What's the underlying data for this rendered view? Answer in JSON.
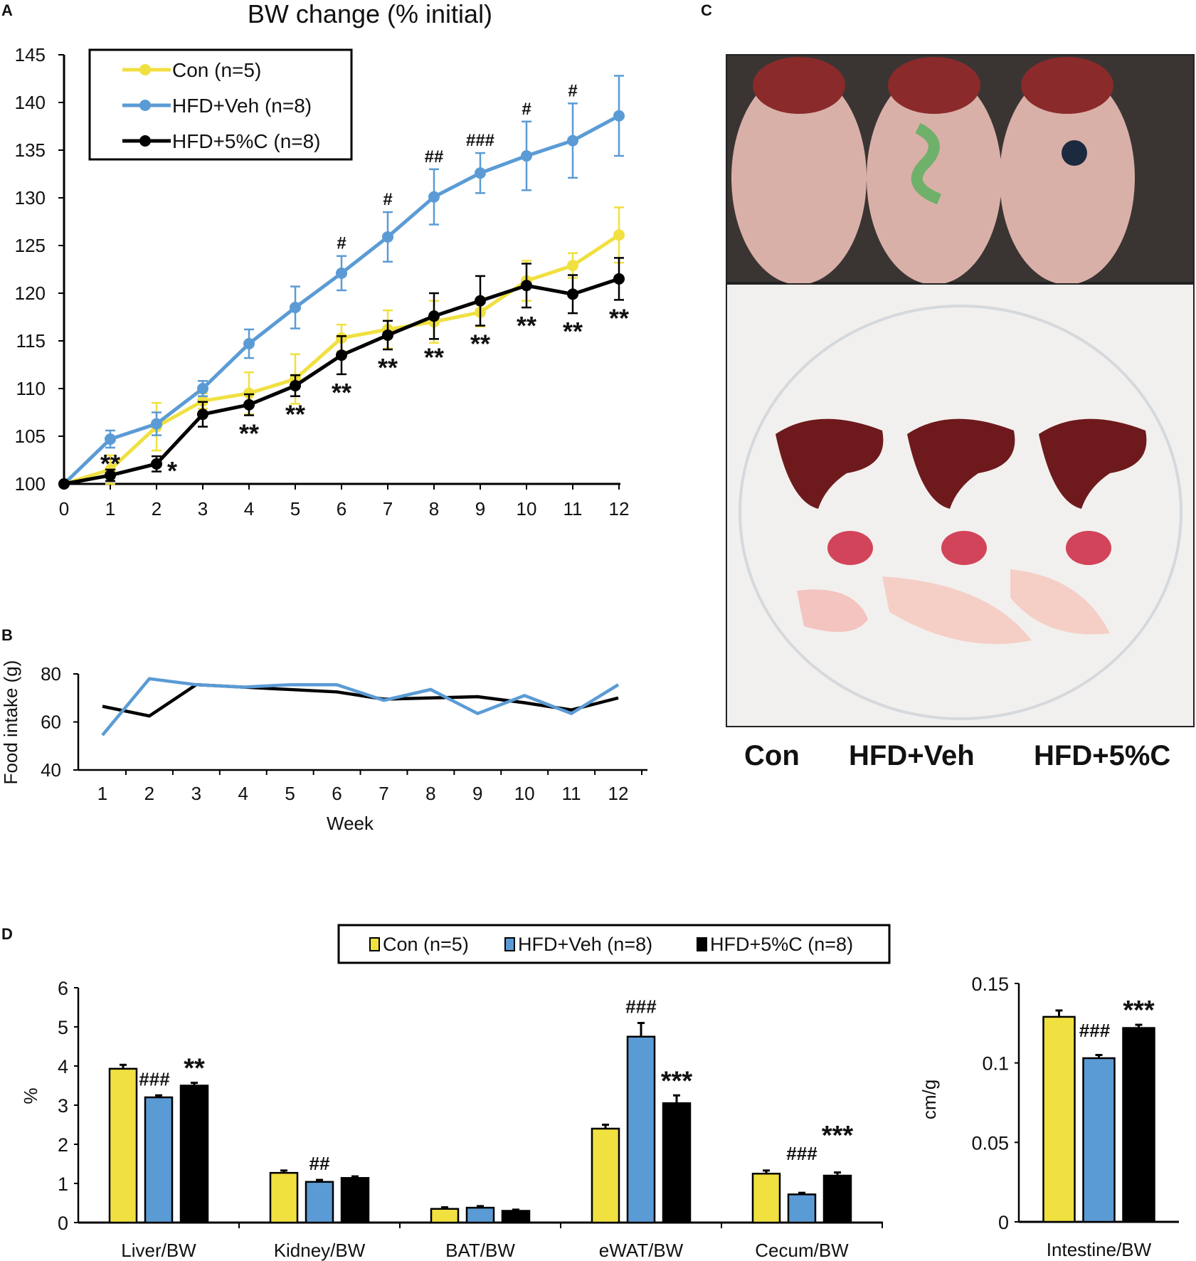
{
  "panels": {
    "a": "A",
    "b": "B",
    "c": "C",
    "d": "D"
  },
  "colors": {
    "con": "#f0e040",
    "veh": "#5b9bd5",
    "c5": "#000000"
  },
  "chart_data": [
    {
      "type": "line",
      "title": "BW change (% initial)",
      "xlabel": "",
      "ylabel": "",
      "xlim": [
        0,
        12
      ],
      "ylim": [
        100,
        145
      ],
      "x": [
        0,
        1,
        2,
        3,
        4,
        5,
        6,
        7,
        8,
        9,
        10,
        11,
        12
      ],
      "yticks": [
        100,
        105,
        110,
        115,
        120,
        125,
        130,
        135,
        140,
        145
      ],
      "legend": "top-left",
      "series": [
        {
          "name": "Con (n=5)",
          "color": "#f0e040",
          "values": [
            100,
            101.5,
            106,
            108.7,
            109.5,
            111,
            115.3,
            116.2,
            117,
            118,
            121.3,
            122.9,
            126.1
          ],
          "errors": [
            0,
            1.5,
            2.5,
            0.8,
            2.2,
            2.6,
            1.4,
            2,
            2.2,
            1.5,
            2.1,
            1.3,
            2.9
          ]
        },
        {
          "name": "HFD+Veh (n=8)",
          "color": "#5b9bd5",
          "values": [
            100,
            104.7,
            106.3,
            110,
            114.7,
            118.5,
            122.1,
            125.9,
            130.1,
            132.6,
            134.4,
            136,
            138.6
          ],
          "errors": [
            0,
            0.9,
            1.2,
            0.8,
            1.5,
            2.2,
            1.8,
            2.6,
            2.9,
            2.1,
            3.6,
            3.9,
            4.2
          ]
        },
        {
          "name": "HFD+5%C (n=8)",
          "color": "#000000",
          "values": [
            100,
            100.9,
            102.1,
            107.3,
            108.3,
            110.3,
            113.5,
            115.6,
            117.6,
            119.2,
            120.8,
            119.9,
            121.5
          ],
          "errors": [
            0,
            0.6,
            0.8,
            1.3,
            1.1,
            1.1,
            2,
            1.5,
            2.4,
            2.6,
            2.3,
            2,
            2.2
          ]
        }
      ],
      "annotations": [
        {
          "x": 1,
          "text": "**",
          "series": "HFD+5%C (n=8)"
        },
        {
          "x": 2,
          "text": "*",
          "series": "HFD+5%C (n=8)"
        },
        {
          "x": 4,
          "text": "**",
          "series": "HFD+5%C (n=8)"
        },
        {
          "x": 5,
          "text": "**",
          "series": "HFD+5%C (n=8)"
        },
        {
          "x": 6,
          "text": "**",
          "series": "HFD+5%C (n=8)"
        },
        {
          "x": 7,
          "text": "**",
          "series": "HFD+5%C (n=8)"
        },
        {
          "x": 8,
          "text": "**",
          "series": "HFD+5%C (n=8)"
        },
        {
          "x": 9,
          "text": "**",
          "series": "HFD+5%C (n=8)"
        },
        {
          "x": 10,
          "text": "**",
          "series": "HFD+5%C (n=8)"
        },
        {
          "x": 11,
          "text": "**",
          "series": "HFD+5%C (n=8)"
        },
        {
          "x": 12,
          "text": "**",
          "series": "HFD+5%C (n=8)"
        },
        {
          "x": 6,
          "text": "#",
          "series": "HFD+Veh (n=8)"
        },
        {
          "x": 7,
          "text": "#",
          "series": "HFD+Veh (n=8)"
        },
        {
          "x": 8,
          "text": "##",
          "series": "HFD+Veh (n=8)"
        },
        {
          "x": 9,
          "text": "###",
          "series": "HFD+Veh (n=8)"
        },
        {
          "x": 10,
          "text": "#",
          "series": "HFD+Veh (n=8)"
        },
        {
          "x": 11,
          "text": "#",
          "series": "HFD+Veh (n=8)"
        }
      ]
    },
    {
      "type": "line",
      "title": "",
      "xlabel": "Week",
      "ylabel": "Food intake (g)",
      "x": [
        1,
        2,
        3,
        4,
        5,
        6,
        7,
        8,
        9,
        10,
        11,
        12
      ],
      "ylim": [
        40,
        80
      ],
      "yticks": [
        40,
        60,
        80
      ],
      "series": [
        {
          "name": "HFD+5%C",
          "color": "#000000",
          "values": [
            66.5,
            62.5,
            75.5,
            74.5,
            73.5,
            72.5,
            69.5,
            70,
            70.5,
            68,
            65,
            70
          ]
        },
        {
          "name": "HFD+Veh",
          "color": "#5b9bd5",
          "values": [
            54.5,
            78,
            75.5,
            74.5,
            75.5,
            75.5,
            69,
            73.5,
            63.5,
            71,
            63.5,
            75.5
          ]
        }
      ]
    },
    {
      "type": "bar",
      "title": "",
      "ylabel": "%",
      "ylim": [
        0,
        6
      ],
      "yticks": [
        0,
        1,
        2,
        3,
        4,
        5,
        6
      ],
      "categories": [
        "Liver/BW",
        "Kidney/BW",
        "BAT/BW",
        "eWAT/BW",
        "Cecum/BW"
      ],
      "legend_labels": [
        "Con (n=5)",
        "HFD+Veh (n=8)",
        "HFD+5%C (n=8)"
      ],
      "series": [
        {
          "name": "Con (n=5)",
          "color": "#f0e040",
          "values": [
            3.93,
            1.27,
            0.35,
            2.4,
            1.25
          ],
          "errors": [
            0.1,
            0.06,
            0.04,
            0.1,
            0.08
          ]
        },
        {
          "name": "HFD+Veh (n=8)",
          "color": "#5b9bd5",
          "values": [
            3.2,
            1.04,
            0.38,
            4.75,
            0.72
          ],
          "errors": [
            0.05,
            0.05,
            0.04,
            0.35,
            0.04
          ]
        },
        {
          "name": "HFD+5%C (n=8)",
          "color": "#000000",
          "values": [
            3.5,
            1.14,
            0.3,
            3.05,
            1.2
          ],
          "errors": [
            0.07,
            0.04,
            0.03,
            0.2,
            0.08
          ]
        }
      ],
      "annotations": [
        {
          "category": "Liver/BW",
          "series": 1,
          "text": "###"
        },
        {
          "category": "Liver/BW",
          "series": 2,
          "text": "**"
        },
        {
          "category": "Kidney/BW",
          "series": 1,
          "text": "##"
        },
        {
          "category": "eWAT/BW",
          "series": 1,
          "text": "###"
        },
        {
          "category": "eWAT/BW",
          "series": 2,
          "text": "***"
        },
        {
          "category": "Cecum/BW",
          "series": 1,
          "text": "###"
        },
        {
          "category": "Cecum/BW",
          "series": 2,
          "text": "***"
        }
      ]
    },
    {
      "type": "bar",
      "title": "",
      "ylabel": "cm/g",
      "ylim": [
        0,
        0.15
      ],
      "yticks": [
        "0",
        "0.05",
        "0.1",
        "0.15"
      ],
      "categories": [
        "Intestine/BW"
      ],
      "series": [
        {
          "name": "Con (n=5)",
          "color": "#f0e040",
          "values": [
            0.129
          ],
          "errors": [
            0.004
          ]
        },
        {
          "name": "HFD+Veh (n=8)",
          "color": "#5b9bd5",
          "values": [
            0.103
          ],
          "errors": [
            0.002
          ]
        },
        {
          "name": "HFD+5%C (n=8)",
          "color": "#000000",
          "values": [
            0.122
          ],
          "errors": [
            0.002
          ]
        }
      ],
      "annotations": [
        {
          "series": 1,
          "text": "###"
        },
        {
          "series": 2,
          "text": "***"
        }
      ]
    }
  ],
  "photo": {
    "labels": [
      "Con",
      "HFD+Veh",
      "HFD+5%C"
    ]
  }
}
